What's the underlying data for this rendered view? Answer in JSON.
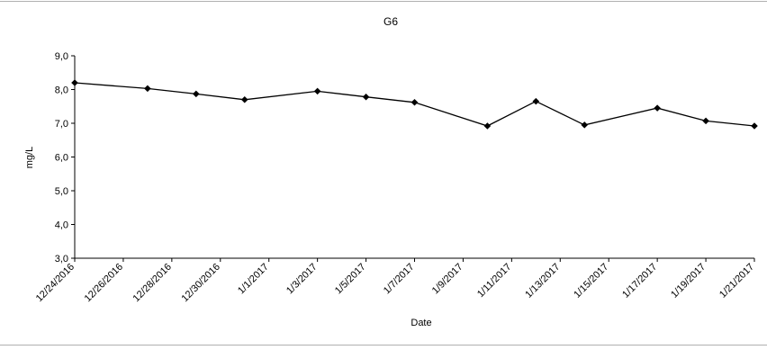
{
  "chart_data": {
    "type": "line",
    "title": "G6",
    "xlabel": "Date",
    "ylabel": "mg/L",
    "ylim": [
      3.0,
      9.0
    ],
    "yticks": [
      "3,0",
      "4,0",
      "5,0",
      "6,0",
      "7,0",
      "8,0",
      "9,0"
    ],
    "xlim": [
      "12/24/2016",
      "1/21/2017"
    ],
    "xticks": [
      "12/24/2016",
      "12/26/2016",
      "12/28/2016",
      "12/30/2016",
      "1/1/2017",
      "1/3/2017",
      "1/5/2017",
      "1/7/2017",
      "1/9/2017",
      "1/11/2017",
      "1/13/2017",
      "1/15/2017",
      "1/17/2017",
      "1/19/2017",
      "1/21/2017"
    ],
    "grid": false,
    "legend": "none",
    "series": [
      {
        "color": "#000000",
        "marker": "diamond",
        "points": [
          {
            "x": "12/24/2016",
            "y": 8.2
          },
          {
            "x": "12/27/2016",
            "y": 8.03
          },
          {
            "x": "12/29/2016",
            "y": 7.87
          },
          {
            "x": "12/31/2016",
            "y": 7.7
          },
          {
            "x": "1/3/2017",
            "y": 7.95
          },
          {
            "x": "1/5/2017",
            "y": 7.78
          },
          {
            "x": "1/7/2017",
            "y": 7.62
          },
          {
            "x": "1/10/2017",
            "y": 6.92
          },
          {
            "x": "1/12/2017",
            "y": 7.65
          },
          {
            "x": "1/14/2017",
            "y": 6.95
          },
          {
            "x": "1/17/2017",
            "y": 7.45
          },
          {
            "x": "1/19/2017",
            "y": 7.07
          },
          {
            "x": "1/21/2017",
            "y": 6.92
          }
        ]
      }
    ]
  }
}
